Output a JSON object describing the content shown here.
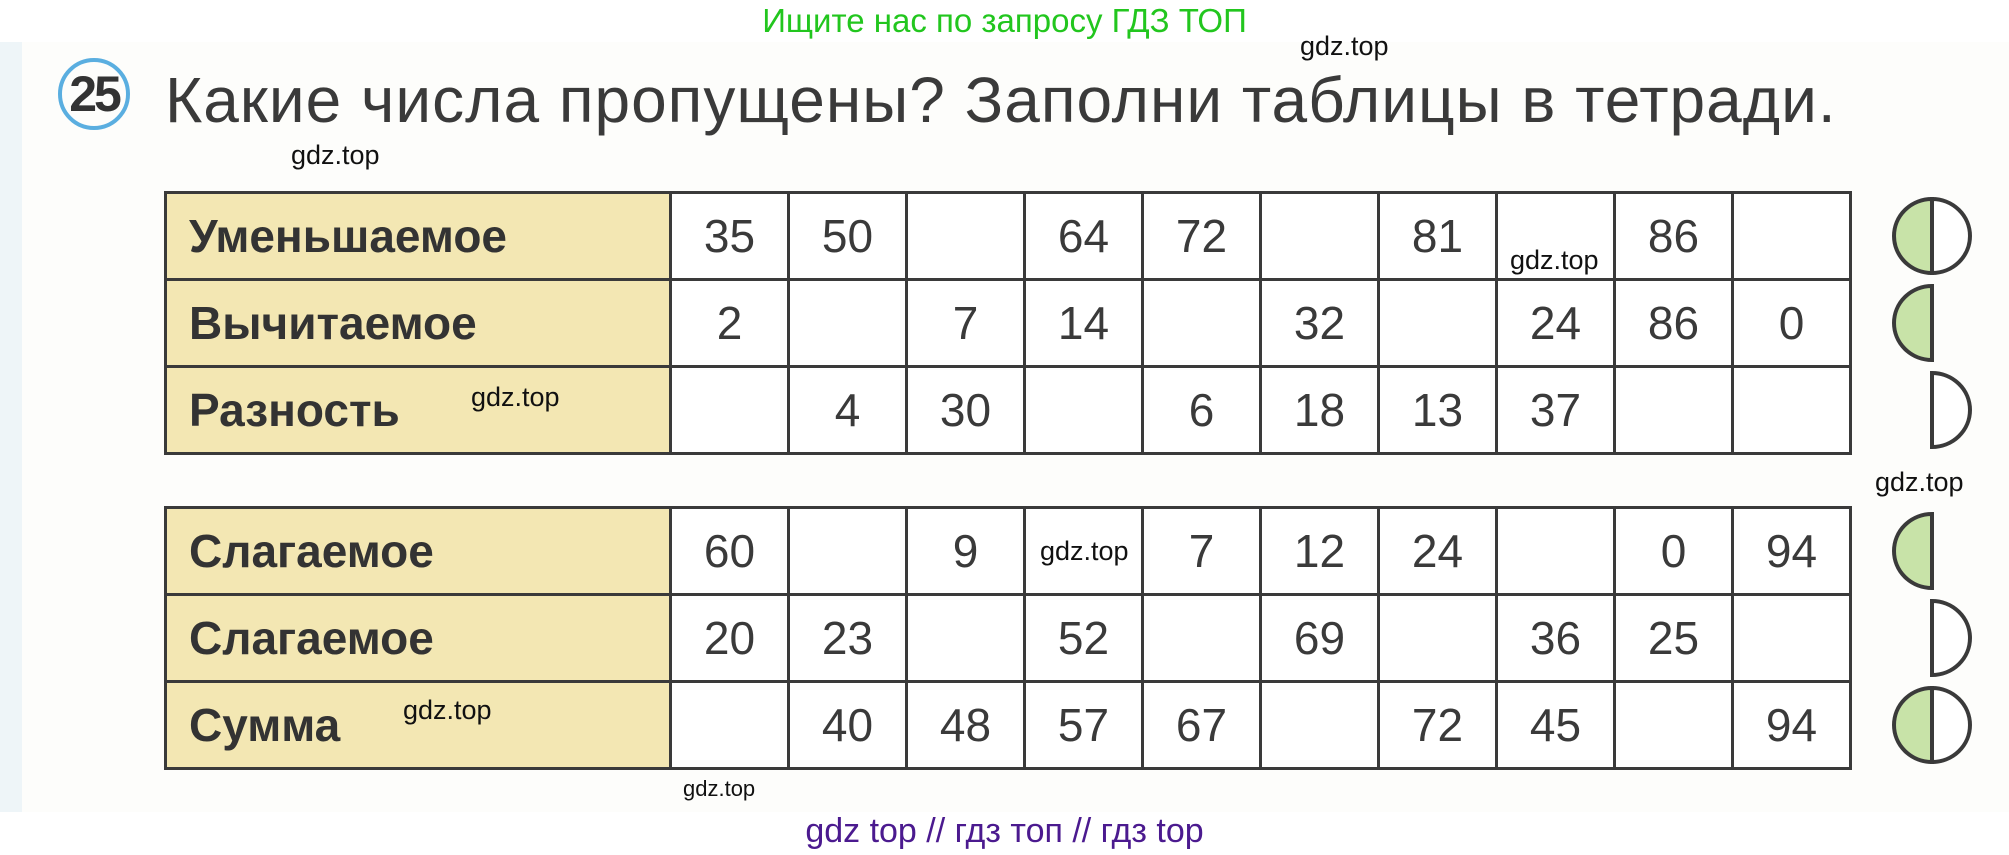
{
  "header_note": "Ищите нас по запросу ГДЗ ТОП",
  "exercise": {
    "number": "25",
    "title": "Какие числа пропущены? Заполни таблицы в тетради."
  },
  "table1": {
    "rows": [
      {
        "label": "Уменьшаемое",
        "cells": [
          "35",
          "50",
          "",
          "64",
          "72",
          "",
          "81",
          "",
          "86",
          ""
        ],
        "marker": "both"
      },
      {
        "label": "Вычитаемое",
        "cells": [
          "2",
          "",
          "7",
          "14",
          "",
          "32",
          "",
          "24",
          "86",
          "0"
        ],
        "marker": "left"
      },
      {
        "label": "Разность",
        "cells": [
          "",
          "4",
          "30",
          "",
          "6",
          "18",
          "13",
          "37",
          "",
          ""
        ],
        "marker": "right"
      }
    ]
  },
  "table2": {
    "rows": [
      {
        "label": "Слагаемое",
        "cells": [
          "60",
          "",
          "9",
          "",
          "7",
          "12",
          "24",
          "",
          "0",
          "94"
        ],
        "marker": "left"
      },
      {
        "label": "Слагаемое",
        "cells": [
          "20",
          "23",
          "",
          "52",
          "",
          "69",
          "",
          "36",
          "25",
          ""
        ],
        "marker": "right"
      },
      {
        "label": "Сумма",
        "cells": [
          "",
          "40",
          "48",
          "57",
          "67",
          "",
          "72",
          "45",
          "",
          "94"
        ],
        "marker": "both"
      }
    ]
  },
  "watermarks": [
    "gdz.top",
    "gdz.top",
    "gdz.top",
    "gdz.top",
    "gdz.top",
    "gdz.top",
    "gdz.top",
    "gdz.top"
  ],
  "footer_note": "gdz top  //  гдз топ  //  гдз top",
  "colors": {
    "label_bg": "#f3e7b3",
    "marker_fill": "#c8e3a8",
    "header_note": "#22c61e",
    "footer_note": "#4b1a8f",
    "badge_ring": "#5aaee0"
  }
}
